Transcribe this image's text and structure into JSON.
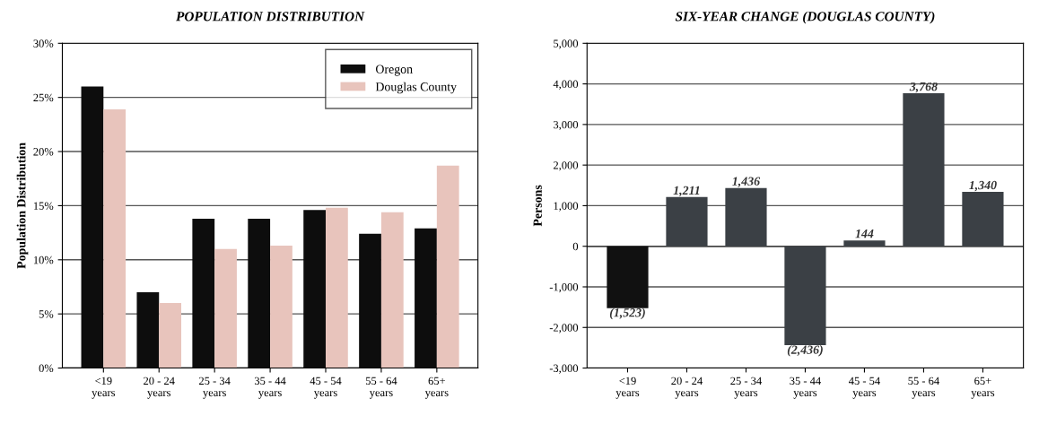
{
  "chart_data": [
    {
      "type": "bar",
      "title": "POPULATION DISTRIBUTION",
      "ylabel": "Population Distribution",
      "categories": [
        "<19\nyears",
        "20 - 24\nyears",
        "25 - 34\nyears",
        "35 - 44\nyears",
        "45 - 54\nyears",
        "55 - 64\nyears",
        "65+\nyears"
      ],
      "series": [
        {
          "name": "Oregon",
          "color": "#0d0d0d",
          "values": [
            26.0,
            7.0,
            13.8,
            13.8,
            14.6,
            12.4,
            12.9
          ]
        },
        {
          "name": "Douglas County",
          "color": "#e8c4bc",
          "values": [
            23.9,
            6.0,
            11.0,
            11.3,
            14.8,
            14.4,
            18.7
          ]
        }
      ],
      "ylim": [
        0,
        30
      ],
      "yticks": [
        {
          "value": 0,
          "label": "0%"
        },
        {
          "value": 5,
          "label": "5%"
        },
        {
          "value": 10,
          "label": "10%"
        },
        {
          "value": 15,
          "label": "15%"
        },
        {
          "value": 20,
          "label": "20%"
        },
        {
          "value": 25,
          "label": "25%"
        },
        {
          "value": 30,
          "label": "30%"
        }
      ],
      "grid": "y",
      "legend": "top right"
    },
    {
      "type": "bar",
      "title": "SIX-YEAR CHANGE (DOUGLAS COUNTY)",
      "ylabel": "Persons",
      "categories": [
        "<19\nyears",
        "20 - 24\nyears",
        "25 - 34\nyears",
        "35 - 44\nyears",
        "45 - 54\nyears",
        "55 - 64\nyears",
        "65+\nyears"
      ],
      "values": [
        -1523,
        1211,
        1436,
        -2436,
        144,
        3768,
        1340
      ],
      "colors": [
        "#111111",
        "#3b4045",
        "#3b4045",
        "#3b4045",
        "#3b4045",
        "#3b4045",
        "#3b4045"
      ],
      "value_labels": [
        "(1,523)",
        "1,211",
        "1,436",
        "(2,436)",
        "144",
        "3,768",
        "1,340"
      ],
      "ylim": [
        -3000,
        5000
      ],
      "yticks": [
        {
          "value": -3000,
          "label": "-3,000"
        },
        {
          "value": -2000,
          "label": "-2,000"
        },
        {
          "value": -1000,
          "label": "-1,000"
        },
        0,
        {
          "value": 1000,
          "label": "1,000"
        },
        {
          "value": 2000,
          "label": "2,000"
        },
        {
          "value": 3000,
          "label": "3,000"
        },
        {
          "value": 4000,
          "label": "4,000"
        },
        {
          "value": 5000,
          "label": "5,000"
        }
      ],
      "grid": "y"
    }
  ]
}
